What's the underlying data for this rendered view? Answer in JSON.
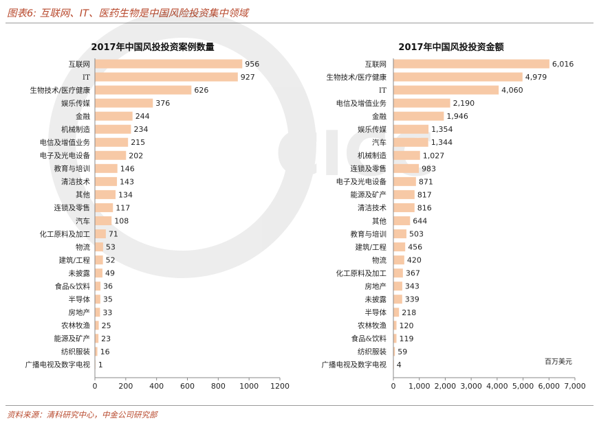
{
  "figure": {
    "title": "图表6: 互联网、IT、医药生物是中国风险投资集中领域",
    "source": "资料来源：清科研究中心，中金公司研究部"
  },
  "colors": {
    "bar": "#f7c9a6",
    "accent": "#b84a2e",
    "axis": "#888888"
  },
  "chart_data": [
    {
      "type": "bar",
      "orientation": "horizontal",
      "title": "2017年中国风投投资案例数量",
      "categories": [
        "互联网",
        "IT",
        "生物技术/医疗健康",
        "娱乐传媒",
        "金融",
        "机械制造",
        "电信及增值业务",
        "电子及光电设备",
        "教育与培训",
        "清洁技术",
        "其他",
        "连锁及零售",
        "汽车",
        "化工原料及加工",
        "物流",
        "建筑/工程",
        "未披露",
        "食品&饮料",
        "半导体",
        "房地产",
        "农林牧渔",
        "能源及矿产",
        "纺织服装",
        "广播电视及数字电视"
      ],
      "values": [
        956,
        927,
        626,
        376,
        244,
        234,
        215,
        202,
        146,
        143,
        134,
        117,
        108,
        71,
        53,
        52,
        49,
        36,
        35,
        33,
        25,
        23,
        16,
        1
      ],
      "value_labels": [
        "956",
        "927",
        "626",
        "376",
        "244",
        "234",
        "215",
        "202",
        "146",
        "143",
        "134",
        "117",
        "108",
        "71",
        "53",
        "52",
        "49",
        "36",
        "35",
        "33",
        "25",
        "23",
        "16",
        "1"
      ],
      "xlim": [
        0,
        1200
      ],
      "xticks": [
        "0",
        "200",
        "400",
        "600",
        "800",
        "1000",
        "1200"
      ],
      "unit": ""
    },
    {
      "type": "bar",
      "orientation": "horizontal",
      "title": "2017年中国风投投资金额",
      "categories": [
        "互联网",
        "生物技术/医疗健康",
        "IT",
        "电信及增值业务",
        "金融",
        "娱乐传媒",
        "汽车",
        "机械制造",
        "连锁及零售",
        "电子及光电设备",
        "能源及矿产",
        "清洁技术",
        "其他",
        "教育与培训",
        "建筑/工程",
        "物流",
        "化工原料及加工",
        "房地产",
        "未披露",
        "半导体",
        "农林牧渔",
        "食品&饮料",
        "纺织服装",
        "广播电视及数字电视"
      ],
      "values": [
        6016,
        4979,
        4060,
        2190,
        1946,
        1354,
        1344,
        1027,
        983,
        871,
        817,
        816,
        644,
        503,
        456,
        420,
        367,
        343,
        339,
        218,
        120,
        119,
        59,
        4
      ],
      "value_labels": [
        "6,016",
        "4,979",
        "4,060",
        "2,190",
        "1,946",
        "1,354",
        "1,344",
        "1,027",
        "983",
        "871",
        "817",
        "816",
        "644",
        "503",
        "456",
        "420",
        "367",
        "343",
        "339",
        "218",
        "120",
        "119",
        "59",
        "4"
      ],
      "xlim": [
        0,
        7000
      ],
      "xticks": [
        "0",
        "1,000",
        "2,000",
        "3,000",
        "4,000",
        "5,000",
        "6,000",
        "7,000"
      ],
      "unit": "百万美元"
    }
  ]
}
